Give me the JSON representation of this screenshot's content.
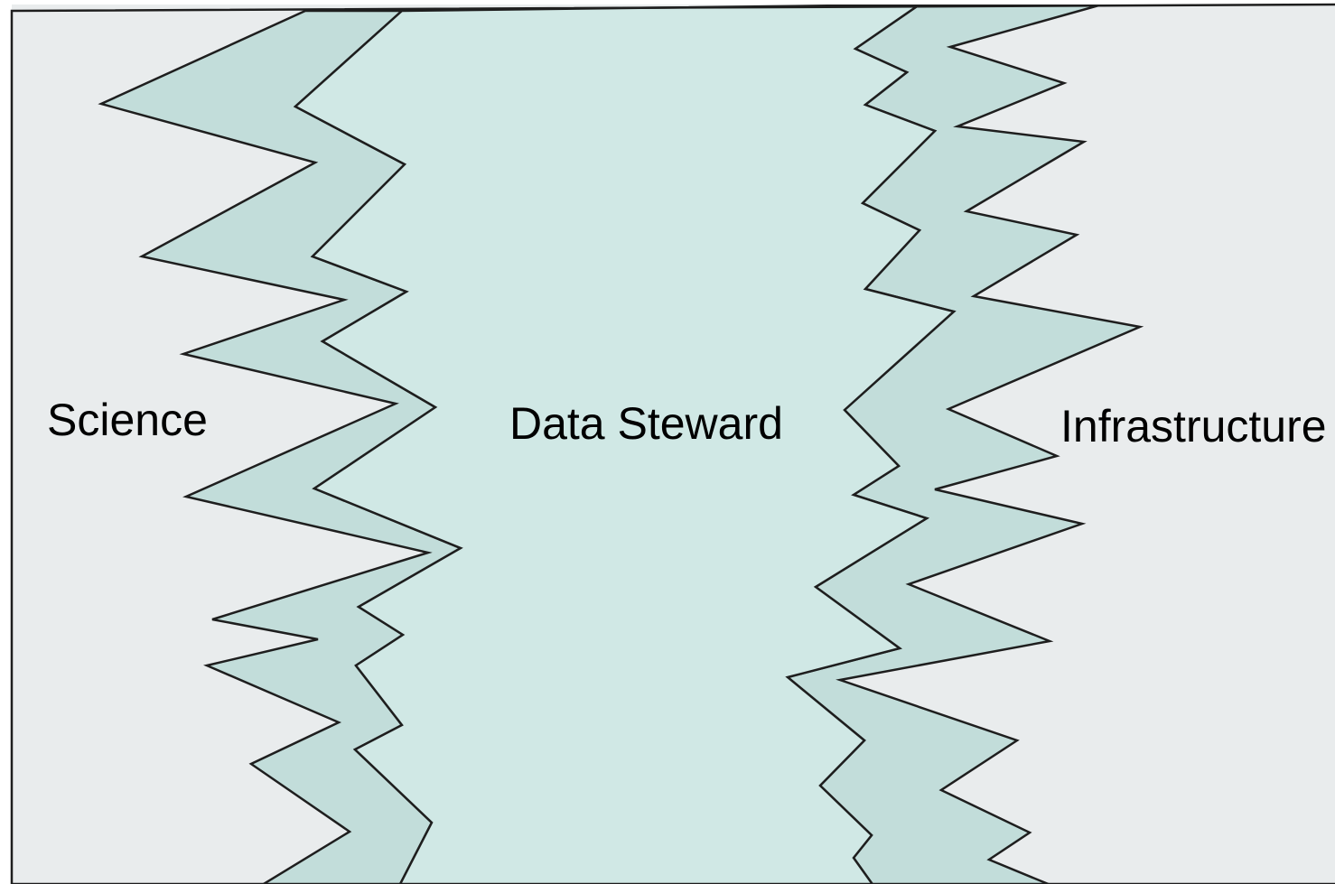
{
  "diagram": {
    "regions": [
      {
        "id": "science",
        "label": "Science"
      },
      {
        "id": "data-steward",
        "label": "Data Steward"
      },
      {
        "id": "infrastructure",
        "label": "Infrastructure"
      }
    ]
  },
  "colors": {
    "outer_background": "#e9eced",
    "center_background": "#d0e8e5",
    "overlap_band": "#c2ddda",
    "stroke": "#1e1e1e",
    "label": "#000000"
  }
}
